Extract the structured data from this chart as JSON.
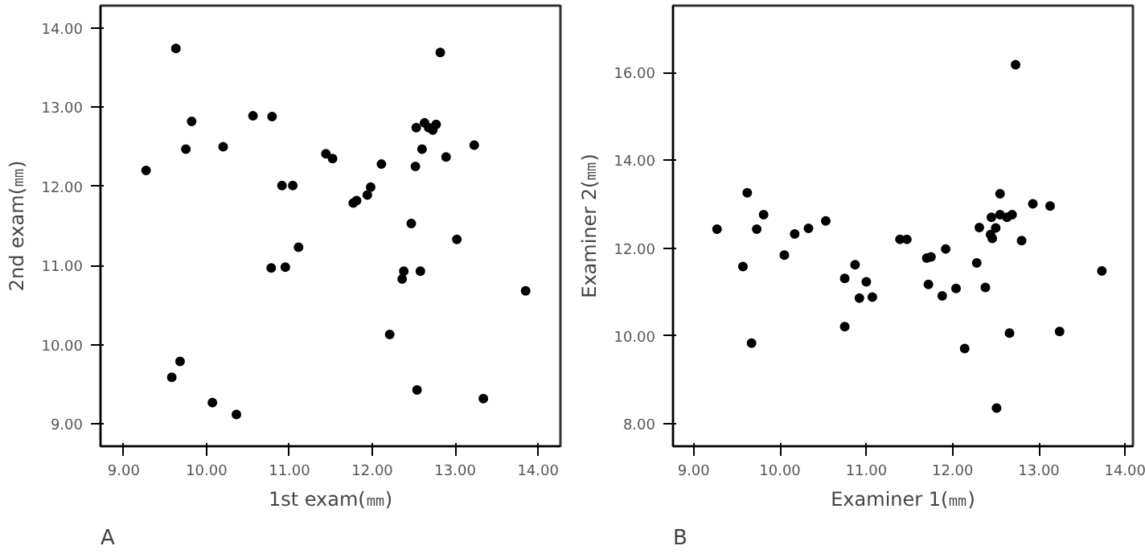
{
  "chart_data": [
    {
      "type": "scatter",
      "xlabel": "1st exam(㎜)",
      "ylabel": "2nd exam(㎜)",
      "annotations": [
        "A"
      ],
      "marker": "circle",
      "grid": false,
      "xlim": [
        8.72,
        14.27
      ],
      "ylim": [
        8.72,
        14.28
      ],
      "xticks": [
        {
          "value": 9,
          "label": "9.00"
        },
        {
          "value": 10,
          "label": "10.00"
        },
        {
          "value": 11,
          "label": "11.00"
        },
        {
          "value": 12,
          "label": "12.00"
        },
        {
          "value": 13,
          "label": "13.00"
        },
        {
          "value": 14,
          "label": "14.00"
        }
      ],
      "yticks": [
        {
          "value": 9,
          "label": "9.00"
        },
        {
          "value": 10,
          "label": "10.00"
        },
        {
          "value": 11,
          "label": "11.00"
        },
        {
          "value": 12,
          "label": "12.00"
        },
        {
          "value": 13,
          "label": "13.00"
        },
        {
          "value": 14,
          "label": "14.00"
        }
      ],
      "series": [
        {
          "color": "#000000",
          "x": [
            9.63,
            12.82,
            9.82,
            10.56,
            10.79,
            9.75,
            10.2,
            9.27,
            11.44,
            11.52,
            12.11,
            12.53,
            12.63,
            12.68,
            12.73,
            12.77,
            12.6,
            12.52,
            12.89,
            13.23,
            10.91,
            11.04,
            11.98,
            11.94,
            11.77,
            11.81,
            12.47,
            13.02,
            11.11,
            10.78,
            10.95,
            12.38,
            12.58,
            12.36,
            13.85,
            12.21,
            9.68,
            9.58,
            10.07,
            10.36,
            12.54,
            13.34
          ],
          "values": [
            13.74,
            13.69,
            12.82,
            12.89,
            12.88,
            12.47,
            12.5,
            12.2,
            12.41,
            12.35,
            12.28,
            12.74,
            12.8,
            12.74,
            12.71,
            12.78,
            12.47,
            12.25,
            12.37,
            12.52,
            12.01,
            12.01,
            11.99,
            11.89,
            11.79,
            11.82,
            11.53,
            11.33,
            11.23,
            10.97,
            10.98,
            10.93,
            10.93,
            10.83,
            10.68,
            10.13,
            9.79,
            9.59,
            9.27,
            9.12,
            9.43,
            9.32
          ]
        }
      ]
    },
    {
      "type": "scatter",
      "xlabel": "Examiner 1(㎜)",
      "ylabel": "Examiner 2(㎜)",
      "annotations": [
        "B"
      ],
      "marker": "circle",
      "grid": false,
      "xlim": [
        8.76,
        14.09
      ],
      "ylim": [
        7.48,
        17.53
      ],
      "xticks": [
        {
          "value": 9,
          "label": "9.00"
        },
        {
          "value": 10,
          "label": "10.00"
        },
        {
          "value": 11,
          "label": "11.00"
        },
        {
          "value": 12,
          "label": "12.00"
        },
        {
          "value": 13,
          "label": "13.00"
        },
        {
          "value": 14,
          "label": "14.00"
        }
      ],
      "yticks": [
        {
          "value": 8,
          "label": "8.00"
        },
        {
          "value": 10,
          "label": "10.00"
        },
        {
          "value": 12,
          "label": "12.00"
        },
        {
          "value": 14,
          "label": "14.00"
        },
        {
          "value": 16,
          "label": "16.00"
        }
      ],
      "series": [
        {
          "color": "#000000",
          "x": [
            12.73,
            9.27,
            9.62,
            9.81,
            9.73,
            9.57,
            9.67,
            10.05,
            10.17,
            10.33,
            10.53,
            10.75,
            10.87,
            11.0,
            10.92,
            11.07,
            10.75,
            11.39,
            11.47,
            11.7,
            11.75,
            11.92,
            11.72,
            11.88,
            12.04,
            12.28,
            12.31,
            12.38,
            12.14,
            12.44,
            12.46,
            12.45,
            12.5,
            12.55,
            12.55,
            12.63,
            12.69,
            12.8,
            12.93,
            13.13,
            12.66,
            12.51,
            13.24,
            13.73
          ],
          "values": [
            16.18,
            12.43,
            13.26,
            12.76,
            12.43,
            11.58,
            9.83,
            11.84,
            12.32,
            12.45,
            12.62,
            11.31,
            11.62,
            11.23,
            10.86,
            10.88,
            10.21,
            12.2,
            12.2,
            11.77,
            11.8,
            11.98,
            11.17,
            10.91,
            11.08,
            11.66,
            12.47,
            11.1,
            9.71,
            12.31,
            12.22,
            12.7,
            12.46,
            13.24,
            12.76,
            12.7,
            12.76,
            12.17,
            13.01,
            12.96,
            10.06,
            8.35,
            10.1,
            11.48
          ]
        }
      ]
    }
  ]
}
